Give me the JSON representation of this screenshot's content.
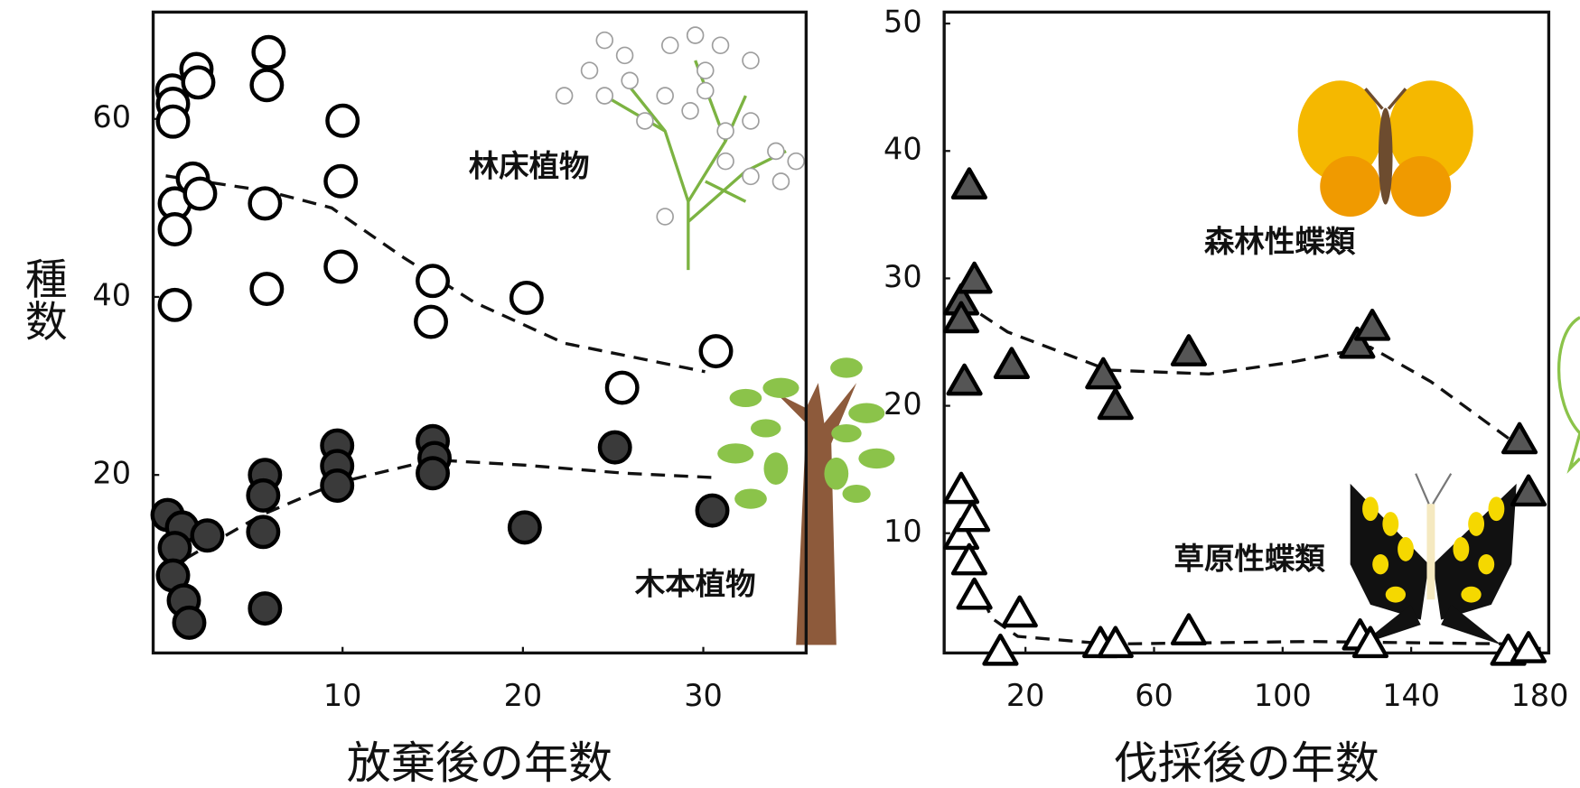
{
  "chart_data": [
    {
      "type": "scatter",
      "ylabel": "種数",
      "xlabel": "放棄後の年数",
      "xlim": [
        -0.5,
        35.7
      ],
      "ylim": [
        0,
        72
      ],
      "xticks": [
        10,
        20,
        30
      ],
      "yticks": [
        20,
        40,
        60
      ],
      "series": [
        {
          "name": "林床植物",
          "marker": "circle",
          "color": "#ffffff",
          "x": [
            0.56,
            0.6,
            0.6,
            1.9,
            2.0,
            5.9,
            5.8,
            0.7,
            0.7,
            1.7,
            2.1,
            5.7,
            0.7,
            10,
            9.9,
            5.8,
            9.9,
            15.0,
            14.9,
            20.2,
            25.5,
            30.7
          ],
          "values": [
            63.2,
            61.7,
            59.7,
            65.6,
            64.1,
            67.5,
            63.8,
            50.5,
            47.6,
            53.3,
            51.6,
            50.5,
            39.1,
            59.8,
            53.0,
            40.9,
            43.4,
            41.8,
            37.2,
            39.9,
            29.8,
            33.9
          ]
        },
        {
          "name": "木本植物",
          "marker": "circle",
          "color": "#3a3a3a",
          "x": [
            0.3,
            1.1,
            0.7,
            0.6,
            1.2,
            1.5,
            2.5,
            5.7,
            5.6,
            5.6,
            5.7,
            9.7,
            9.7,
            9.7,
            15.0,
            15.1,
            15.0,
            20.1,
            25.1,
            30.5
          ],
          "values": [
            15.5,
            14.1,
            11.8,
            8.7,
            5.9,
            3.4,
            13.2,
            20.0,
            17.7,
            13.6,
            5.0,
            23.3,
            21.0,
            18.8,
            23.8,
            21.9,
            20.2,
            14.1,
            23.1,
            16.0
          ]
        }
      ],
      "trend_lines": [
        {
          "x": [
            0.2,
            5.8,
            9.4,
            13.4,
            17.3,
            22.3,
            30.1
          ],
          "values": [
            53.6,
            51.9,
            50.0,
            44.4,
            39.4,
            34.8,
            31.6
          ]
        },
        {
          "x": [
            1.3,
            5.5,
            9.7,
            15.0,
            20.1,
            25.6,
            30.7
          ],
          "values": [
            10.6,
            15.5,
            19.1,
            21.7,
            21.1,
            20.2,
            19.7
          ]
        }
      ]
    },
    {
      "type": "scatter",
      "xlabel": "伐採後の年数",
      "xlim": [
        -5.3,
        182.8
      ],
      "ylim": [
        0.6,
        50.9
      ],
      "xticks": [
        20,
        60,
        100,
        140,
        180
      ],
      "yticks": [
        10,
        20,
        30,
        40,
        50
      ],
      "series": [
        {
          "name": "森林性蝶類",
          "marker": "triangle",
          "color": "#555555",
          "x": [
            2.5,
            0,
            0,
            4.1,
            1.0,
            15.7,
            44.2,
            48.0,
            70.8,
            123.2,
            127.9,
            173.7,
            176.5
          ],
          "values": [
            37.3,
            28.2,
            26.8,
            29.9,
            21.9,
            23.2,
            22.4,
            20.0,
            24.2,
            24.8,
            26.2,
            17.3,
            13.2
          ]
        },
        {
          "name": "草原性蝶類",
          "marker": "triangle",
          "color": "#ffffff",
          "x": [
            0,
            0,
            3.4,
            2.5,
            4.1,
            18.2,
            12.2,
            43.3,
            48.0,
            70.8,
            124.1,
            127.3,
            170.2,
            176.5
          ],
          "values": [
            13.4,
            9.8,
            11.2,
            7.8,
            5.1,
            3.7,
            0.7,
            1.3,
            1.3,
            2.3,
            1.9,
            1.3,
            0.7,
            0.9
          ]
        }
      ],
      "trend_lines": [
        {
          "x": [
            0,
            14.4,
            45.8,
            77.1,
            102.2,
            127.3,
            146.1,
            174.3
          ],
          "values": [
            28.2,
            25.8,
            22.8,
            22.5,
            23.4,
            24.6,
            21.9,
            16.7
          ]
        },
        {
          "x": [
            0.3,
            9.7,
            17.6,
            45.8,
            108.5,
            174.3
          ],
          "values": [
            8.0,
            3.3,
            1.9,
            1.3,
            1.5,
            1.3
          ]
        }
      ]
    }
  ]
}
